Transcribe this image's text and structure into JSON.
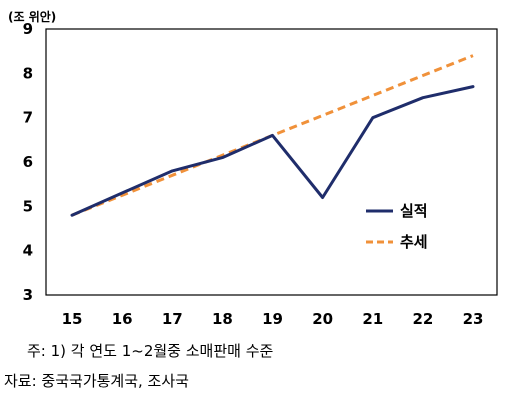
{
  "chart_data": {
    "type": "line",
    "unit_label": "(조 위안)",
    "categories": [
      "15",
      "16",
      "17",
      "18",
      "19",
      "20",
      "21",
      "22",
      "23"
    ],
    "ylim": [
      3,
      9
    ],
    "yticks": [
      "3",
      "4",
      "5",
      "6",
      "7",
      "8",
      "9"
    ],
    "grid": false,
    "legend_position": "right",
    "series": [
      {
        "name": "실적",
        "color": "#1f2d6b",
        "style": "solid",
        "values": [
          4.8,
          5.3,
          5.8,
          6.1,
          6.6,
          5.2,
          7.0,
          7.45,
          7.7
        ]
      },
      {
        "name": "추세",
        "color": "#f0913a",
        "style": "dashed",
        "values": [
          4.8,
          5.25,
          5.7,
          6.15,
          6.6,
          7.05,
          7.5,
          7.95,
          8.4
        ]
      }
    ]
  },
  "notes": {
    "line1": "주: 1) 각 연도 1~2월중 소매판매 수준",
    "line2": "자료: 중국국가통계국, 조사국"
  }
}
